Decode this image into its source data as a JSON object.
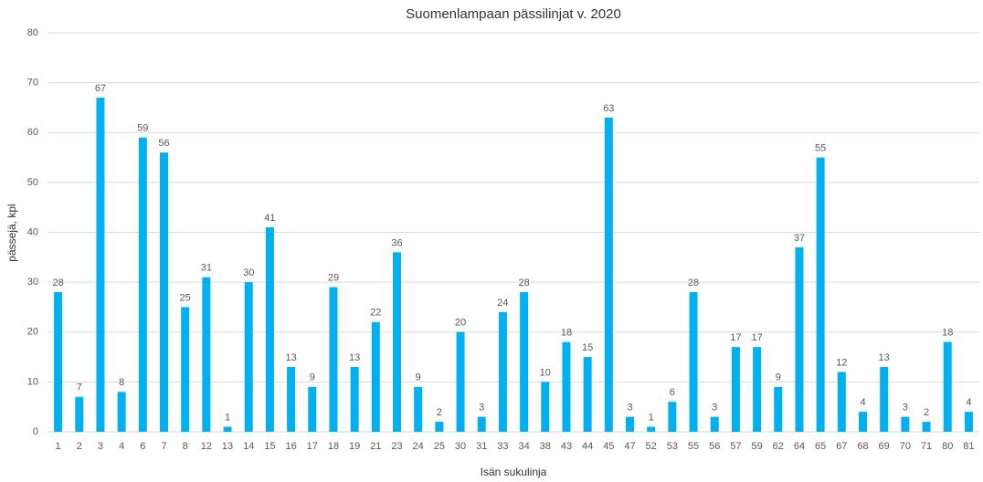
{
  "chart_data": {
    "type": "bar",
    "title": "Suomenlampaan pässilinjat v. 2020",
    "x_label": "Isän sukulinja",
    "y_label": "pässejä, kpl",
    "categories": [
      "1",
      "2",
      "3",
      "4",
      "6",
      "7",
      "8",
      "12",
      "13",
      "14",
      "15",
      "16",
      "17",
      "18",
      "19",
      "21",
      "23",
      "24",
      "25",
      "30",
      "31",
      "33",
      "34",
      "38",
      "43",
      "44",
      "45",
      "47",
      "52",
      "53",
      "55",
      "56",
      "57",
      "59",
      "62",
      "64",
      "65",
      "67",
      "68",
      "69",
      "70",
      "71",
      "80",
      "81"
    ],
    "values": [
      28,
      7,
      67,
      8,
      59,
      56,
      25,
      31,
      1,
      30,
      41,
      13,
      9,
      29,
      13,
      22,
      36,
      9,
      2,
      20,
      3,
      24,
      28,
      10,
      18,
      15,
      63,
      3,
      1,
      6,
      28,
      3,
      17,
      17,
      9,
      37,
      55,
      12,
      4,
      13,
      3,
      2,
      18,
      4
    ],
    "color": "#00b0f0",
    "ylim": [
      0,
      80
    ],
    "yticks": [
      0,
      10,
      20,
      30,
      40,
      50,
      60,
      70,
      80
    ],
    "grid": true
  }
}
